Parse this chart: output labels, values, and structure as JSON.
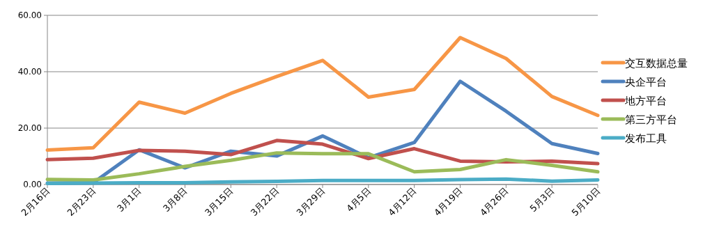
{
  "chart_data": {
    "type": "line",
    "categories": [
      "2月16日",
      "2月23日",
      "3月1日",
      "3月8日",
      "3月15日",
      "3月22日",
      "3月29日",
      "4月5日",
      "4月12日",
      "4月19日",
      "4月26日",
      "5月3日",
      "5月10日"
    ],
    "series": [
      {
        "name": "交互数据总量",
        "color": "#f79646",
        "values": [
          12.2,
          13,
          29.2,
          25.3,
          32.3,
          38.3,
          44,
          31,
          33.7,
          52.1,
          44.7,
          31.2,
          24.5
        ]
      },
      {
        "name": "央企平台",
        "color": "#4f81bd",
        "values": [
          0.5,
          0.6,
          12.3,
          5.9,
          11.8,
          10.1,
          17.2,
          9.5,
          14.9,
          36.6,
          26,
          14.5,
          11
        ]
      },
      {
        "name": "地方平台",
        "color": "#c0504d",
        "values": [
          8.8,
          9.3,
          12.1,
          11.8,
          10.6,
          15.6,
          14.3,
          9.2,
          12.7,
          8.3,
          8,
          8.3,
          7.4
        ]
      },
      {
        "name": "第三方平台",
        "color": "#9bbb59",
        "values": [
          1.8,
          1.6,
          3.8,
          6.4,
          8.6,
          11.2,
          10.9,
          10.9,
          4.5,
          5.3,
          8.8,
          6.8,
          4.5
        ]
      },
      {
        "name": "发布工具",
        "color": "#4bacc6",
        "values": [
          0.4,
          0.5,
          0.6,
          0.6,
          0.9,
          1.1,
          1.4,
          1.4,
          1.4,
          1.7,
          1.9,
          1.2,
          1.6
        ]
      }
    ],
    "ylim": [
      0,
      60
    ],
    "yticks": [
      {
        "value": 0,
        "label": "0.00"
      },
      {
        "value": 20,
        "label": "20.00"
      },
      {
        "value": 40,
        "label": "40.00"
      },
      {
        "value": 60,
        "label": "60.00"
      }
    ],
    "grid": "y",
    "legend": "right",
    "marker": "none",
    "line_style": "solid"
  }
}
